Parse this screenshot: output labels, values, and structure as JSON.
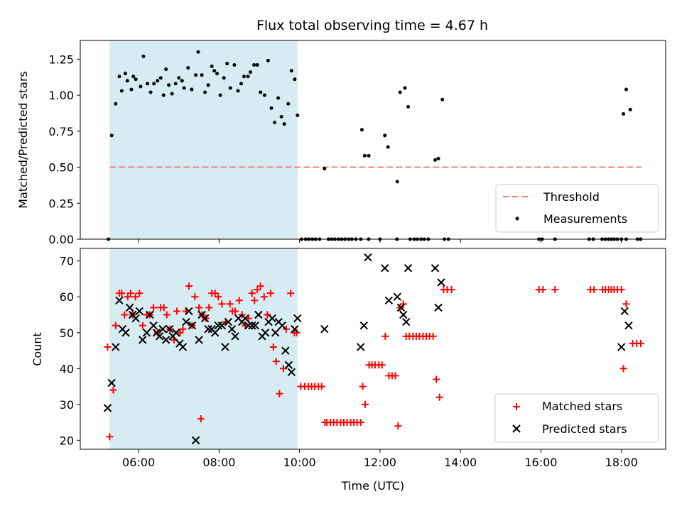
{
  "title": "Flux total observing time = 4.67 h",
  "colors": {
    "shade": "#add8e6",
    "threshold": "#f08080",
    "matched": "#ff0000",
    "predicted": "#000000",
    "measurement": "#000000"
  },
  "chart_data": [
    {
      "type": "scatter",
      "ylabel": "Matched/Predicted stars",
      "xlim": [
        4.55,
        19.1
      ],
      "ylim": [
        0,
        1.38
      ],
      "yticks": [
        "0.00",
        "0.25",
        "0.50",
        "0.75",
        "1.00",
        "1.25"
      ],
      "grid": false,
      "legend_position": "lower-right",
      "shaded_span": [
        5.28,
        9.95
      ],
      "threshold": {
        "name": "Threshold",
        "value": 0.5,
        "x_range": [
          5.28,
          18.5
        ]
      },
      "measurements": {
        "name": "Measurements",
        "x": [
          5.25,
          5.33,
          5.43,
          5.52,
          5.58,
          5.67,
          5.72,
          5.82,
          5.87,
          5.93,
          6.05,
          6.12,
          6.22,
          6.3,
          6.38,
          6.47,
          6.55,
          6.62,
          6.68,
          6.75,
          6.83,
          6.92,
          7.0,
          7.08,
          7.13,
          7.23,
          7.32,
          7.42,
          7.48,
          7.57,
          7.65,
          7.73,
          7.82,
          7.88,
          7.95,
          8.03,
          8.12,
          8.2,
          8.28,
          8.38,
          8.47,
          8.55,
          8.62,
          8.72,
          8.78,
          8.87,
          8.95,
          9.03,
          9.13,
          9.22,
          9.3,
          9.38,
          9.47,
          9.55,
          9.62,
          9.72,
          9.8,
          9.88,
          9.95,
          10.62,
          11.55,
          11.62,
          11.72,
          12.12,
          12.2,
          12.43,
          12.5,
          12.62,
          12.7,
          13.37,
          13.45,
          13.55,
          18.05,
          18.12,
          18.22
        ],
        "y": [
          0.0,
          0.72,
          0.94,
          1.13,
          1.03,
          1.15,
          1.1,
          1.04,
          1.13,
          1.11,
          1.06,
          1.27,
          1.08,
          1.02,
          1.08,
          1.1,
          1.12,
          1.0,
          1.18,
          1.07,
          1.01,
          1.08,
          1.12,
          1.1,
          1.05,
          1.19,
          1.04,
          1.14,
          1.3,
          1.14,
          1.02,
          1.07,
          1.2,
          1.17,
          1.15,
          1.0,
          1.12,
          1.22,
          1.05,
          1.21,
          1.03,
          1.08,
          1.13,
          1.13,
          1.16,
          1.21,
          1.21,
          1.02,
          1.0,
          1.24,
          0.91,
          0.81,
          0.98,
          0.85,
          0.8,
          0.94,
          1.17,
          1.11,
          0.86,
          0.49,
          0.76,
          0.58,
          0.58,
          0.72,
          0.64,
          0.4,
          1.02,
          1.05,
          0.92,
          0.55,
          0.56,
          0.97,
          0.87,
          1.04,
          0.9
        ]
      },
      "zeros_x": [
        10.05,
        10.15,
        10.23,
        10.32,
        10.4,
        10.5,
        10.72,
        10.8,
        10.88,
        10.97,
        11.05,
        11.13,
        11.22,
        11.3,
        11.4,
        11.52,
        11.72,
        12.0,
        12.42,
        12.75,
        12.85,
        12.93,
        13.02,
        13.1,
        13.2,
        13.6,
        13.7,
        15.95,
        16.03,
        16.35,
        17.2,
        17.3,
        17.52,
        17.6,
        17.68,
        17.75,
        17.82,
        17.9,
        18.0,
        18.12,
        18.4,
        18.48
      ]
    },
    {
      "type": "scatter",
      "xlabel": "Time (UTC)",
      "ylabel": "Count",
      "xlim": [
        4.55,
        19.1
      ],
      "ylim": [
        17.5,
        73.5
      ],
      "xticks": [
        "06:00",
        "08:00",
        "10:00",
        "12:00",
        "14:00",
        "16:00",
        "18:00"
      ],
      "yticks": [
        "20",
        "30",
        "40",
        "50",
        "60",
        "70"
      ],
      "grid": false,
      "legend_position": "lower-right",
      "shaded_span": [
        5.28,
        9.95
      ],
      "series": [
        {
          "name": "Matched stars",
          "marker": "plus",
          "x": [
            5.23,
            5.28,
            5.37,
            5.43,
            5.52,
            5.58,
            5.65,
            5.73,
            5.8,
            5.85,
            5.92,
            6.02,
            6.1,
            6.2,
            6.28,
            6.37,
            6.47,
            6.55,
            6.63,
            6.7,
            6.78,
            6.88,
            6.95,
            7.03,
            7.1,
            7.18,
            7.25,
            7.33,
            7.4,
            7.5,
            7.58,
            7.67,
            7.75,
            7.82,
            7.9,
            7.98,
            8.07,
            8.17,
            8.27,
            8.33,
            8.4,
            8.5,
            8.57,
            8.65,
            8.73,
            8.82,
            8.88,
            8.95,
            9.03,
            9.12,
            9.2,
            9.28,
            9.35,
            9.42,
            9.5,
            9.6,
            9.67,
            9.78,
            9.87,
            9.93,
            10.03,
            10.13,
            10.22,
            10.3,
            10.38,
            10.47,
            10.55,
            10.63,
            10.68,
            10.77,
            10.85,
            10.93,
            11.02,
            11.1,
            11.18,
            11.27,
            11.35,
            11.43,
            11.52,
            11.57,
            11.63,
            11.73,
            11.8,
            11.88,
            11.97,
            12.05,
            12.13,
            12.22,
            12.3,
            12.38,
            12.45,
            12.5,
            12.58,
            12.65,
            12.73,
            12.82,
            12.9,
            12.98,
            13.07,
            13.15,
            13.23,
            13.32,
            13.4,
            13.48,
            13.58,
            13.67,
            13.78,
            15.95,
            16.05,
            16.35,
            17.23,
            17.32,
            17.53,
            17.6,
            17.68,
            17.75,
            17.82,
            17.9,
            18.0,
            18.05,
            18.12,
            18.28,
            18.38,
            18.48
          ],
          "y": [
            46,
            21,
            34,
            52,
            61,
            61,
            55,
            60,
            61,
            55,
            60,
            61,
            52,
            55,
            55,
            57,
            50,
            57,
            57,
            55,
            51,
            48,
            56,
            50,
            51,
            56,
            63,
            52,
            60,
            57,
            55,
            54,
            57,
            61,
            61,
            60,
            58,
            53,
            58,
            56,
            56,
            59,
            55,
            52,
            54,
            61,
            59,
            62,
            63,
            60,
            55,
            61,
            46,
            42,
            33,
            40,
            51,
            61,
            50,
            50,
            35,
            35,
            35,
            35,
            35,
            35,
            35,
            25,
            25,
            25,
            25,
            25,
            25,
            25,
            25,
            25,
            25,
            25,
            25,
            35,
            30,
            41,
            41,
            41,
            41,
            41,
            49,
            38,
            38,
            38,
            24,
            57,
            58,
            49,
            49,
            49,
            49,
            49,
            49,
            49,
            49,
            49,
            37,
            32,
            62,
            62,
            62,
            62,
            62,
            62,
            62,
            62,
            62,
            62,
            62,
            62,
            62,
            62,
            62,
            40,
            58,
            47,
            47,
            47
          ],
          "extra_y_at_x": {
            "x": 7.55,
            "y": 26
          }
        },
        {
          "name": "Predicted stars",
          "marker": "x",
          "x": [
            5.23,
            5.33,
            5.43,
            5.52,
            5.6,
            5.68,
            5.78,
            5.85,
            5.93,
            6.02,
            6.1,
            6.2,
            6.28,
            6.37,
            6.45,
            6.52,
            6.6,
            6.68,
            6.77,
            6.85,
            6.93,
            7.02,
            7.1,
            7.18,
            7.25,
            7.33,
            7.42,
            7.5,
            7.57,
            7.65,
            7.73,
            7.82,
            7.9,
            7.98,
            8.07,
            8.15,
            8.23,
            8.32,
            8.4,
            8.48,
            8.57,
            8.65,
            8.73,
            8.82,
            8.9,
            8.98,
            9.07,
            9.15,
            9.23,
            9.32,
            9.4,
            9.48,
            9.57,
            9.65,
            9.73,
            9.8,
            9.88,
            9.95,
            10.62,
            11.52,
            11.6,
            11.7,
            12.12,
            12.22,
            12.43,
            12.52,
            12.58,
            12.65,
            12.7,
            13.37,
            13.45,
            13.52,
            18.0,
            18.08,
            18.18
          ],
          "y": [
            29,
            36,
            46,
            59,
            51,
            50,
            57,
            55,
            54,
            56,
            48,
            50,
            55,
            52,
            50,
            49,
            51,
            48,
            51,
            49,
            50,
            47,
            46,
            53,
            56,
            52,
            20,
            48,
            55,
            54,
            51,
            51,
            50,
            52,
            52,
            46,
            53,
            51,
            49,
            54,
            53,
            54,
            52,
            52,
            52,
            55,
            49,
            50,
            53,
            54,
            50,
            53,
            52,
            45,
            41,
            39,
            51,
            54,
            51,
            46,
            52,
            71,
            68,
            59,
            60,
            57,
            55,
            53,
            68,
            68,
            57,
            64,
            46,
            56,
            52
          ]
        }
      ]
    }
  ]
}
